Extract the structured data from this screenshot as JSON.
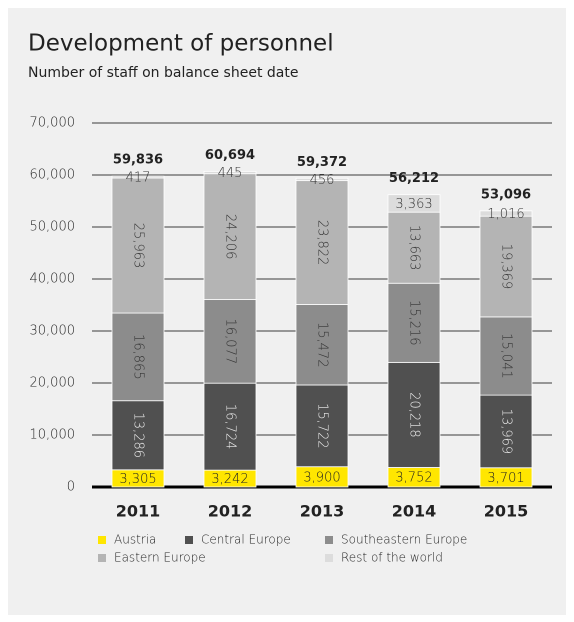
{
  "chart_data": {
    "type": "stacked_bar",
    "title": "Development of personnel",
    "subtitle": "Number of staff on balance sheet date",
    "categories": [
      "2011",
      "2012",
      "2013",
      "2014",
      "2015"
    ],
    "series": [
      {
        "name": "Austria",
        "color": "#ffe600",
        "values": [
          3305,
          3242,
          3900,
          3752,
          3701
        ],
        "value_labels": [
          "3,305",
          "3,242",
          "3,900",
          "3,752",
          "3,701"
        ]
      },
      {
        "name": "Central Europe",
        "color": "#505050",
        "values": [
          13286,
          16724,
          15722,
          20218,
          13969
        ],
        "value_labels": [
          "13,286",
          "16,724",
          "15,722",
          "20,218",
          "13,969"
        ]
      },
      {
        "name": "Southeastern Europe",
        "color": "#8c8c8c",
        "values": [
          16865,
          16077,
          15472,
          15216,
          15041
        ],
        "value_labels": [
          "16,865",
          "16,077",
          "15,472",
          "15,216",
          "15,041"
        ]
      },
      {
        "name": "Eastern Europe",
        "color": "#b4b4b4",
        "values": [
          25963,
          24206,
          23822,
          13663,
          19369
        ],
        "value_labels": [
          "25,963",
          "24,206",
          "23,822",
          "13,663",
          "19,369"
        ]
      },
      {
        "name": "Rest of the world",
        "color": "#dcdcdc",
        "values": [
          417,
          445,
          456,
          3363,
          1016
        ],
        "value_labels": [
          "417",
          "445",
          "456",
          "3,363",
          "1,016"
        ]
      }
    ],
    "totals": [
      59836,
      60694,
      59372,
      56212,
      53096
    ],
    "total_labels": [
      "59,836",
      "60,694",
      "59,372",
      "56,212",
      "53,096"
    ],
    "ylim": [
      0,
      70000
    ],
    "yticks": [
      0,
      {
        "value": 10000,
        "label": "10,000"
      },
      {
        "value": 20000,
        "label": "20,000"
      },
      {
        "value": 30000,
        "label": "30,000"
      },
      {
        "value": 40000,
        "label": "40,000"
      },
      {
        "value": 50000,
        "label": "50,000"
      },
      {
        "value": 60000,
        "label": "60,000"
      },
      {
        "value": 70000,
        "label": "70,000"
      }
    ],
    "grid": true
  }
}
